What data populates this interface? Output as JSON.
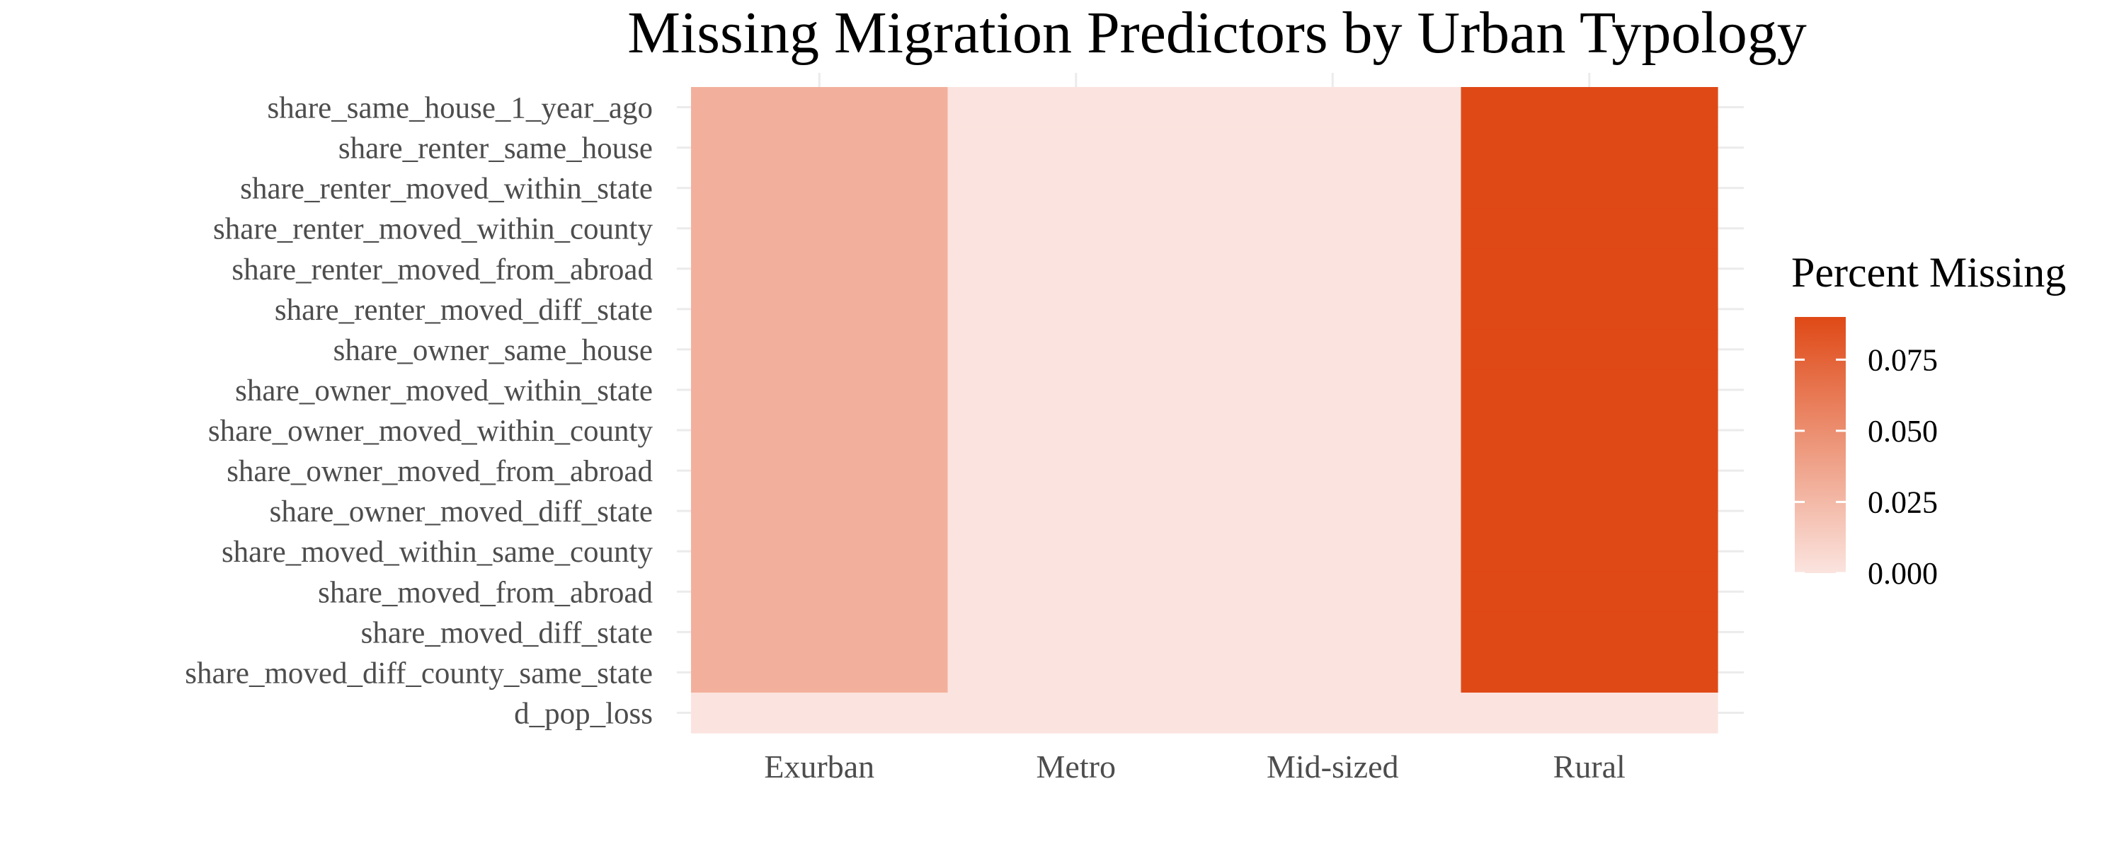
{
  "chart_data": {
    "type": "heatmap",
    "title": "Missing Migration Predictors by Urban Typology",
    "xlabel": "",
    "ylabel": "",
    "x_categories": [
      "Exurban",
      "Metro",
      "Mid-sized",
      "Rural"
    ],
    "y_categories": [
      "share_same_house_1_year_ago",
      "share_renter_same_house",
      "share_renter_moved_within_state",
      "share_renter_moved_within_county",
      "share_renter_moved_from_abroad",
      "share_renter_moved_diff_state",
      "share_owner_same_house",
      "share_owner_moved_within_state",
      "share_owner_moved_within_county",
      "share_owner_moved_from_abroad",
      "share_owner_moved_diff_state",
      "share_moved_within_same_county",
      "share_moved_from_abroad",
      "share_moved_diff_state",
      "share_moved_diff_county_same_state",
      "d_pop_loss"
    ],
    "values": [
      [
        0.03,
        0.0,
        0.0,
        0.09
      ],
      [
        0.03,
        0.0,
        0.0,
        0.09
      ],
      [
        0.03,
        0.0,
        0.0,
        0.09
      ],
      [
        0.03,
        0.0,
        0.0,
        0.09
      ],
      [
        0.03,
        0.0,
        0.0,
        0.09
      ],
      [
        0.03,
        0.0,
        0.0,
        0.09
      ],
      [
        0.03,
        0.0,
        0.0,
        0.09
      ],
      [
        0.03,
        0.0,
        0.0,
        0.09
      ],
      [
        0.03,
        0.0,
        0.0,
        0.09
      ],
      [
        0.03,
        0.0,
        0.0,
        0.09
      ],
      [
        0.03,
        0.0,
        0.0,
        0.09
      ],
      [
        0.03,
        0.0,
        0.0,
        0.09
      ],
      [
        0.03,
        0.0,
        0.0,
        0.09
      ],
      [
        0.03,
        0.0,
        0.0,
        0.09
      ],
      [
        0.03,
        0.0,
        0.0,
        0.09
      ],
      [
        0.0,
        0.0,
        0.0,
        0.0
      ]
    ],
    "legend": {
      "title": "Percent Missing",
      "ticks": [
        0.0,
        0.025,
        0.05,
        0.075
      ],
      "tick_labels": [
        "0.000",
        "0.025",
        "0.050",
        "0.075"
      ],
      "min": 0.0,
      "max": 0.09,
      "low_color": "#fbe4df",
      "high_color": "#df4916",
      "placement": "right"
    },
    "grid": true
  }
}
